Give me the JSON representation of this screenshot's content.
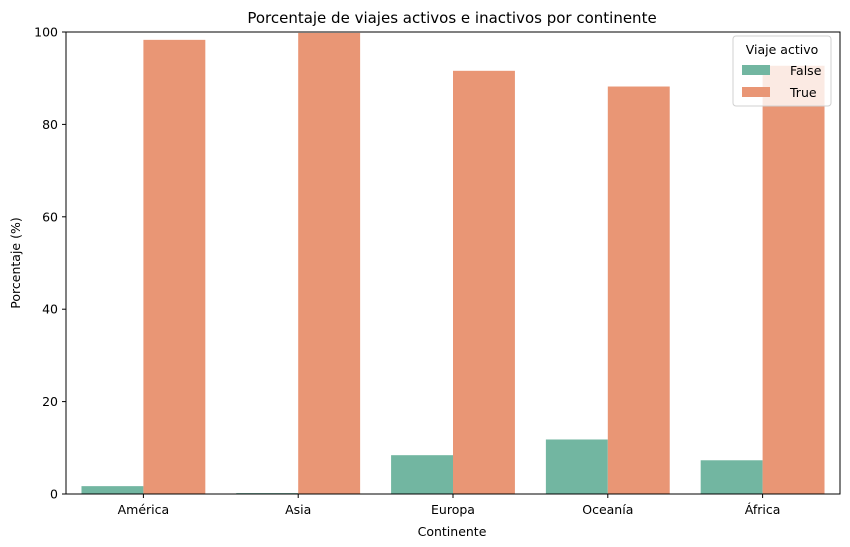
{
  "chart_data": {
    "type": "bar",
    "title": "Porcentaje de viajes activos e inactivos por continente",
    "xlabel": "Continente",
    "ylabel": "Porcentaje (%)",
    "ylim": [
      0,
      100
    ],
    "yticks": [
      "0",
      "20",
      "40",
      "60",
      "80",
      "100"
    ],
    "grid": false,
    "categories": [
      "América",
      "Asia",
      "Europa",
      "Oceanía",
      "África"
    ],
    "series": [
      {
        "name": "False",
        "color": "#72b6a1",
        "values": [
          1.7,
          0.2,
          8.4,
          11.8,
          7.3
        ]
      },
      {
        "name": "True",
        "color": "#e99675",
        "values": [
          98.3,
          99.8,
          91.6,
          88.2,
          92.7
        ]
      }
    ],
    "legend": {
      "title": "Viaje activo",
      "placement": "top-right"
    }
  }
}
